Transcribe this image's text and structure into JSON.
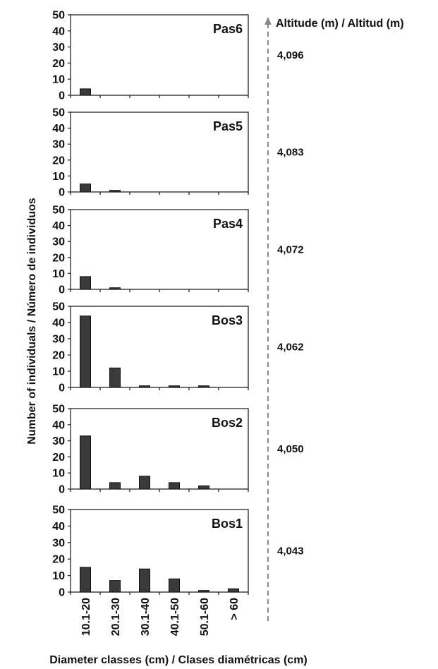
{
  "colors": {
    "bar": "#3a3a3a",
    "axis": "#222222",
    "altitude_axis": "#888888"
  },
  "altitude_axis_title": "Altitude (m) / Altitud (m)",
  "ylabel": "Number of individuals / Número de individuos",
  "xlabel": "Diameter classes (cm) / Clases diamétricas (cm)",
  "chart_data": [
    {
      "type": "bar",
      "title": "Pas6",
      "altitude": "4,096",
      "categories": [
        "10.1-20",
        "20.1-30",
        "30.1-40",
        "40.1-50",
        "50.1-60",
        "> 60"
      ],
      "values": [
        4,
        0,
        0,
        0,
        0,
        0
      ],
      "ylim": [
        0,
        50
      ],
      "yticks": [
        0,
        10,
        20,
        30,
        40,
        50
      ]
    },
    {
      "type": "bar",
      "title": "Pas5",
      "altitude": "4,083",
      "categories": [
        "10.1-20",
        "20.1-30",
        "30.1-40",
        "40.1-50",
        "50.1-60",
        "> 60"
      ],
      "values": [
        5,
        1,
        0,
        0,
        0,
        0
      ],
      "ylim": [
        0,
        50
      ],
      "yticks": [
        0,
        10,
        20,
        30,
        40,
        50
      ]
    },
    {
      "type": "bar",
      "title": "Pas4",
      "altitude": "4,072",
      "categories": [
        "10.1-20",
        "20.1-30",
        "30.1-40",
        "40.1-50",
        "50.1-60",
        "> 60"
      ],
      "values": [
        8,
        1,
        0,
        0,
        0,
        0
      ],
      "ylim": [
        0,
        50
      ],
      "yticks": [
        0,
        10,
        20,
        30,
        40,
        50
      ]
    },
    {
      "type": "bar",
      "title": "Bos3",
      "altitude": "4,062",
      "categories": [
        "10.1-20",
        "20.1-30",
        "30.1-40",
        "40.1-50",
        "50.1-60",
        "> 60"
      ],
      "values": [
        44,
        12,
        1,
        1,
        1,
        0
      ],
      "ylim": [
        0,
        50
      ],
      "yticks": [
        0,
        10,
        20,
        30,
        40,
        50
      ]
    },
    {
      "type": "bar",
      "title": "Bos2",
      "altitude": "4,050",
      "categories": [
        "10.1-20",
        "20.1-30",
        "30.1-40",
        "40.1-50",
        "50.1-60",
        "> 60"
      ],
      "values": [
        33,
        4,
        8,
        4,
        2,
        0
      ],
      "ylim": [
        0,
        50
      ],
      "yticks": [
        0,
        10,
        20,
        30,
        40,
        50
      ]
    },
    {
      "type": "bar",
      "title": "Bos1",
      "altitude": "4,043",
      "categories": [
        "10.1-20",
        "20.1-30",
        "30.1-40",
        "40.1-50",
        "50.1-60",
        "> 60"
      ],
      "values": [
        15,
        7,
        14,
        8,
        1,
        2
      ],
      "ylim": [
        0,
        50
      ],
      "yticks": [
        0,
        10,
        20,
        30,
        40,
        50
      ]
    }
  ]
}
